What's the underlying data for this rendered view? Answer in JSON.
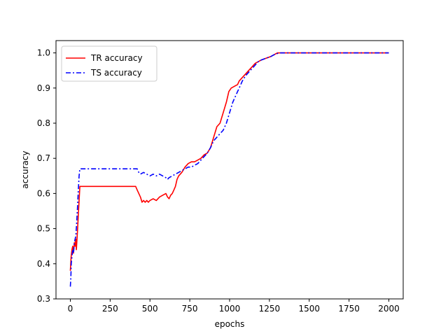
{
  "chart_data": {
    "type": "line",
    "title": "",
    "xlabel": "epochs",
    "ylabel": "accuracy",
    "xlim": [
      -90,
      2090
    ],
    "ylim": [
      0.3,
      1.035
    ],
    "xticks": [
      0,
      250,
      500,
      750,
      1000,
      1250,
      1500,
      1750,
      2000
    ],
    "xtick_labels": [
      "0",
      "250",
      "500",
      "750",
      "1000",
      "1250",
      "1500",
      "1750",
      "2000"
    ],
    "yticks": [
      0.3,
      0.4,
      0.5,
      0.6,
      0.7,
      0.8,
      0.9,
      1.0
    ],
    "ytick_labels": [
      "0.3",
      "0.4",
      "0.5",
      "0.6",
      "0.7",
      "0.8",
      "0.9",
      "1.0"
    ],
    "grid": false,
    "legend": {
      "position": "top-left"
    },
    "series": [
      {
        "name": "TR accuracy",
        "color": "#ff0000",
        "style": "solid",
        "points": [
          [
            0,
            0.38
          ],
          [
            5,
            0.42
          ],
          [
            10,
            0.44
          ],
          [
            15,
            0.45
          ],
          [
            20,
            0.43
          ],
          [
            25,
            0.46
          ],
          [
            30,
            0.45
          ],
          [
            35,
            0.47
          ],
          [
            38,
            0.44
          ],
          [
            42,
            0.47
          ],
          [
            46,
            0.5
          ],
          [
            50,
            0.54
          ],
          [
            55,
            0.58
          ],
          [
            60,
            0.62
          ],
          [
            100,
            0.62
          ],
          [
            200,
            0.62
          ],
          [
            300,
            0.62
          ],
          [
            410,
            0.62
          ],
          [
            420,
            0.61
          ],
          [
            430,
            0.6
          ],
          [
            440,
            0.59
          ],
          [
            450,
            0.575
          ],
          [
            460,
            0.58
          ],
          [
            470,
            0.575
          ],
          [
            480,
            0.58
          ],
          [
            490,
            0.575
          ],
          [
            500,
            0.58
          ],
          [
            520,
            0.585
          ],
          [
            540,
            0.58
          ],
          [
            560,
            0.59
          ],
          [
            580,
            0.595
          ],
          [
            600,
            0.6
          ],
          [
            610,
            0.59
          ],
          [
            620,
            0.585
          ],
          [
            630,
            0.595
          ],
          [
            640,
            0.6
          ],
          [
            650,
            0.61
          ],
          [
            660,
            0.62
          ],
          [
            670,
            0.64
          ],
          [
            680,
            0.65
          ],
          [
            700,
            0.66
          ],
          [
            720,
            0.675
          ],
          [
            740,
            0.685
          ],
          [
            760,
            0.69
          ],
          [
            780,
            0.69
          ],
          [
            800,
            0.695
          ],
          [
            820,
            0.7
          ],
          [
            840,
            0.71
          ],
          [
            860,
            0.715
          ],
          [
            880,
            0.73
          ],
          [
            900,
            0.76
          ],
          [
            920,
            0.79
          ],
          [
            940,
            0.8
          ],
          [
            960,
            0.83
          ],
          [
            980,
            0.86
          ],
          [
            995,
            0.89
          ],
          [
            1010,
            0.9
          ],
          [
            1030,
            0.905
          ],
          [
            1050,
            0.91
          ],
          [
            1060,
            0.92
          ],
          [
            1080,
            0.93
          ],
          [
            1100,
            0.94
          ],
          [
            1120,
            0.95
          ],
          [
            1140,
            0.96
          ],
          [
            1160,
            0.97
          ],
          [
            1180,
            0.975
          ],
          [
            1200,
            0.98
          ],
          [
            1230,
            0.985
          ],
          [
            1260,
            0.99
          ],
          [
            1280,
            0.995
          ],
          [
            1300,
            1.0
          ],
          [
            1500,
            1.0
          ],
          [
            1800,
            1.0
          ],
          [
            2000,
            1.0
          ]
        ]
      },
      {
        "name": "TS accuracy",
        "color": "#0000ff",
        "style": "dashdot",
        "points": [
          [
            0,
            0.335
          ],
          [
            3,
            0.36
          ],
          [
            6,
            0.4
          ],
          [
            10,
            0.42
          ],
          [
            15,
            0.44
          ],
          [
            20,
            0.43
          ],
          [
            25,
            0.46
          ],
          [
            30,
            0.47
          ],
          [
            35,
            0.48
          ],
          [
            40,
            0.52
          ],
          [
            45,
            0.56
          ],
          [
            50,
            0.61
          ],
          [
            55,
            0.65
          ],
          [
            60,
            0.67
          ],
          [
            100,
            0.67
          ],
          [
            200,
            0.67
          ],
          [
            300,
            0.67
          ],
          [
            420,
            0.67
          ],
          [
            430,
            0.66
          ],
          [
            440,
            0.655
          ],
          [
            460,
            0.66
          ],
          [
            480,
            0.655
          ],
          [
            500,
            0.65
          ],
          [
            520,
            0.655
          ],
          [
            540,
            0.65
          ],
          [
            560,
            0.655
          ],
          [
            580,
            0.65
          ],
          [
            600,
            0.645
          ],
          [
            610,
            0.64
          ],
          [
            620,
            0.645
          ],
          [
            640,
            0.65
          ],
          [
            660,
            0.655
          ],
          [
            680,
            0.66
          ],
          [
            700,
            0.665
          ],
          [
            720,
            0.67
          ],
          [
            740,
            0.675
          ],
          [
            760,
            0.675
          ],
          [
            780,
            0.68
          ],
          [
            800,
            0.685
          ],
          [
            820,
            0.695
          ],
          [
            840,
            0.705
          ],
          [
            860,
            0.715
          ],
          [
            880,
            0.73
          ],
          [
            900,
            0.75
          ],
          [
            920,
            0.76
          ],
          [
            940,
            0.77
          ],
          [
            960,
            0.78
          ],
          [
            980,
            0.8
          ],
          [
            1000,
            0.83
          ],
          [
            1020,
            0.86
          ],
          [
            1040,
            0.88
          ],
          [
            1060,
            0.9
          ],
          [
            1080,
            0.92
          ],
          [
            1100,
            0.935
          ],
          [
            1120,
            0.945
          ],
          [
            1140,
            0.955
          ],
          [
            1160,
            0.965
          ],
          [
            1180,
            0.975
          ],
          [
            1200,
            0.98
          ],
          [
            1230,
            0.985
          ],
          [
            1260,
            0.99
          ],
          [
            1280,
            0.995
          ],
          [
            1310,
            1.0
          ],
          [
            1500,
            1.0
          ],
          [
            1800,
            1.0
          ],
          [
            2000,
            1.0
          ]
        ]
      }
    ]
  }
}
